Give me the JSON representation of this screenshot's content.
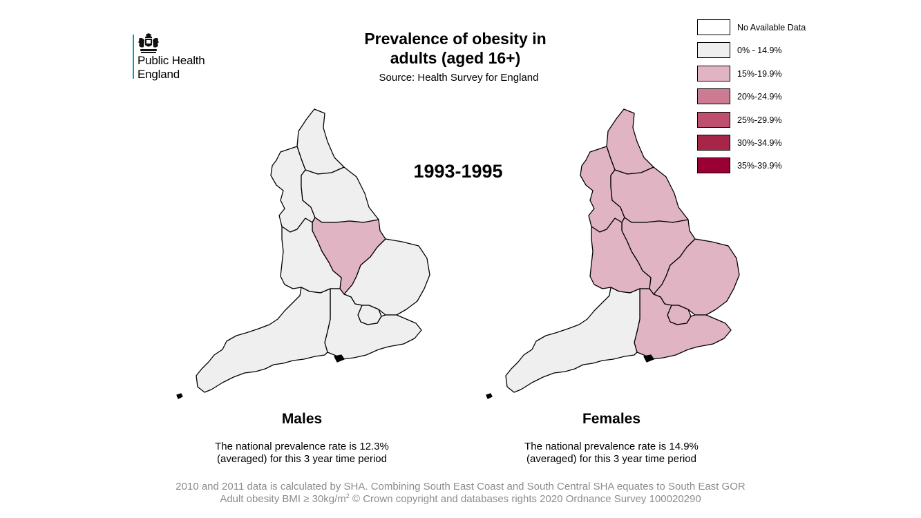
{
  "logo": {
    "org_line1": "Public Health",
    "org_line2": "England",
    "crest_icon": "royal-crest-icon",
    "accent_color": "#00a3ad"
  },
  "header": {
    "title_line1": "Prevalence of obesity in",
    "title_line2": "adults (aged 16+)",
    "source": "Source: Health Survey for England",
    "period": "1993-1995"
  },
  "legend": {
    "items": [
      {
        "label": "No Available Data",
        "color": "#ffffff"
      },
      {
        "label": "0% - 14.9%",
        "color": "#efefef"
      },
      {
        "label": "15%-19.9%",
        "color": "#e0b4c2"
      },
      {
        "label": "20%-24.9%",
        "color": "#cd7a93"
      },
      {
        "label": "25%-29.9%",
        "color": "#be4f6f"
      },
      {
        "label": "30%-34.9%",
        "color": "#a8254a"
      },
      {
        "label": "35%-39.9%",
        "color": "#990033"
      }
    ]
  },
  "panels": {
    "males": {
      "title": "Males",
      "note_line1": "The national prevalence rate is 12.3%",
      "note_line2": "(averaged) for this 3 year time period",
      "regions": [
        {
          "name": "North East",
          "band": "0% - 14.9%"
        },
        {
          "name": "North West",
          "band": "0% - 14.9%"
        },
        {
          "name": "Yorkshire and the Humber",
          "band": "0% - 14.9%"
        },
        {
          "name": "East Midlands",
          "band": "15%-19.9%"
        },
        {
          "name": "West Midlands",
          "band": "0% - 14.9%"
        },
        {
          "name": "East of England",
          "band": "0% - 14.9%"
        },
        {
          "name": "London",
          "band": "0% - 14.9%"
        },
        {
          "name": "South East",
          "band": "0% - 14.9%"
        },
        {
          "name": "South West",
          "band": "0% - 14.9%"
        }
      ]
    },
    "females": {
      "title": "Females",
      "note_line1": "The national prevalence rate is 14.9%",
      "note_line2": "(averaged) for this 3 year time period",
      "regions": [
        {
          "name": "North East",
          "band": "15%-19.9%"
        },
        {
          "name": "North West",
          "band": "15%-19.9%"
        },
        {
          "name": "Yorkshire and the Humber",
          "band": "15%-19.9%"
        },
        {
          "name": "East Midlands",
          "band": "15%-19.9%"
        },
        {
          "name": "West Midlands",
          "band": "15%-19.9%"
        },
        {
          "name": "East of England",
          "band": "15%-19.9%"
        },
        {
          "name": "London",
          "band": "15%-19.9%"
        },
        {
          "name": "South East",
          "band": "15%-19.9%"
        },
        {
          "name": "South West",
          "band": "0% - 14.9%"
        }
      ]
    }
  },
  "footer": {
    "line1": "2010 and 2011 data is calculated by SHA. Combining South East Coast and South Central SHA equates to South East GOR",
    "line2_prefix": "Adult obesity BMI ≥ 30kg/m",
    "line2_sup": "2",
    "line2_suffix": "  © Crown copyright and databases rights 2020 Ordnance Survey 100020290"
  }
}
